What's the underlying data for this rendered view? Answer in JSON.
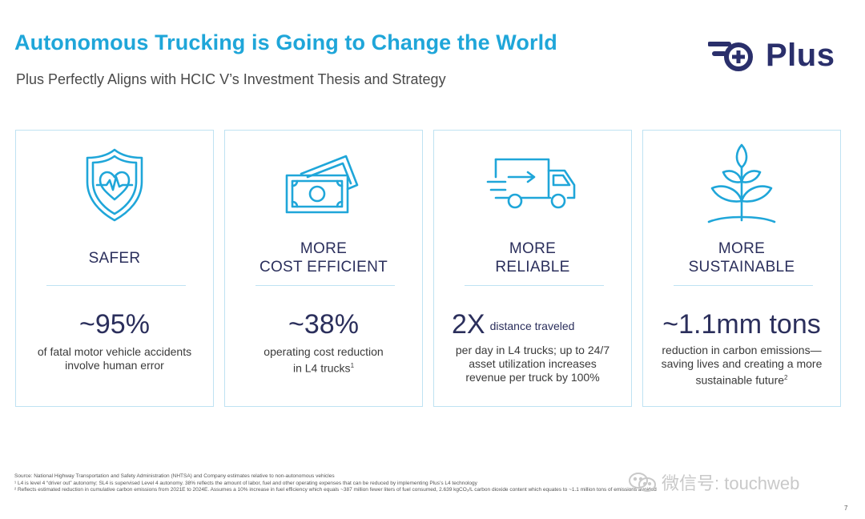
{
  "header": {
    "title": "Autonomous Trucking is Going to Change the World",
    "subtitle": "Plus Perfectly Aligns with HCIC V’s Investment Thesis and Strategy",
    "logo_text": "Plus"
  },
  "cards": [
    {
      "icon": "heart-shield-icon",
      "heading_lines": [
        "SAFER"
      ],
      "stat": "~95%",
      "stat_small": "",
      "desc_lines": [
        "of fatal motor vehicle accidents",
        "involve human error"
      ],
      "footnote_mark": ""
    },
    {
      "icon": "cash-icon",
      "heading_lines": [
        "MORE",
        "COST EFFICIENT"
      ],
      "stat": "~38%",
      "stat_small": "",
      "desc_lines": [
        "operating cost reduction",
        "in L4 trucks"
      ],
      "footnote_mark": "1"
    },
    {
      "icon": "truck-icon",
      "heading_lines": [
        "MORE",
        "RELIABLE"
      ],
      "stat": "2X",
      "stat_small": "distance traveled",
      "desc_lines": [
        "per day in L4 trucks; up to 24/7",
        "asset utilization increases",
        "revenue per truck by 100%"
      ],
      "footnote_mark": ""
    },
    {
      "icon": "plant-icon",
      "heading_lines": [
        "MORE",
        "SUSTAINABLE"
      ],
      "stat": "~1.1mm tons",
      "stat_small": "",
      "desc_lines": [
        "reduction in carbon emissions—",
        "saving lives and creating a more",
        "sustainable future"
      ],
      "footnote_mark": "2"
    }
  ],
  "footnotes": [
    "Source: National Highway Transportation and Safety Administration (NHTSA) and Company estimates relative to non-autonomous vehicles",
    "¹ L4 is level 4 “driver out” autonomy; SL4 is supervised Level 4 autonomy. 38% reflects the amount of labor, fuel and other operating expenses that can be reduced by implementing Plus’s L4 technology",
    "² Reflects estimated reduction in cumulative carbon emissions from 2021E to 2024E. Assumes a 10% increase in fuel efficiency which equals ~387 million fewer liters of fuel consumed, 2.639 kgCO₂/L carbon dioxide content which equates to ~1.1 million tons of emissions avoided"
  ],
  "page_number": "7",
  "watermark": "微信号: touchweb",
  "colors": {
    "accent": "#1fa6d9",
    "navy": "#2a2f6b",
    "border": "#bfe2f2"
  }
}
